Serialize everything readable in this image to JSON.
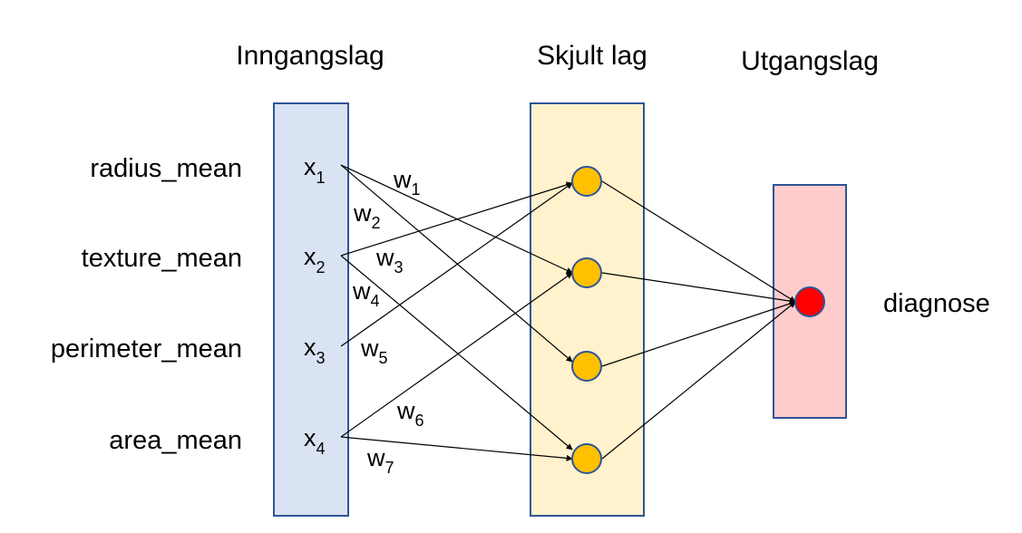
{
  "layers": {
    "input_title": "Inngangslag",
    "hidden_title": "Skjult lag",
    "output_title": "Utgangslag"
  },
  "features": [
    "radius_mean",
    "texture_mean",
    "perimeter_mean",
    "area_mean"
  ],
  "inputs": [
    {
      "base": "x",
      "sub": "1"
    },
    {
      "base": "x",
      "sub": "2"
    },
    {
      "base": "x",
      "sub": "3"
    },
    {
      "base": "x",
      "sub": "4"
    }
  ],
  "weights": [
    {
      "base": "w",
      "sub": "1"
    },
    {
      "base": "w",
      "sub": "2"
    },
    {
      "base": "w",
      "sub": "3"
    },
    {
      "base": "w",
      "sub": "4"
    },
    {
      "base": "w",
      "sub": "5"
    },
    {
      "base": "w",
      "sub": "6"
    },
    {
      "base": "w",
      "sub": "7"
    }
  ],
  "output_label": "diagnose",
  "colors": {
    "input_box_fill": "#dae3f3",
    "input_box_stroke": "#2f5597",
    "hidden_box_fill": "#fff2cc",
    "hidden_box_stroke": "#2f5597",
    "output_box_fill": "#ffcccc",
    "output_box_stroke": "#2f5597",
    "hidden_node_fill": "#ffc000",
    "hidden_node_stroke": "#2f5597",
    "output_node_fill": "#ff0000",
    "output_node_stroke": "#2f5597"
  }
}
